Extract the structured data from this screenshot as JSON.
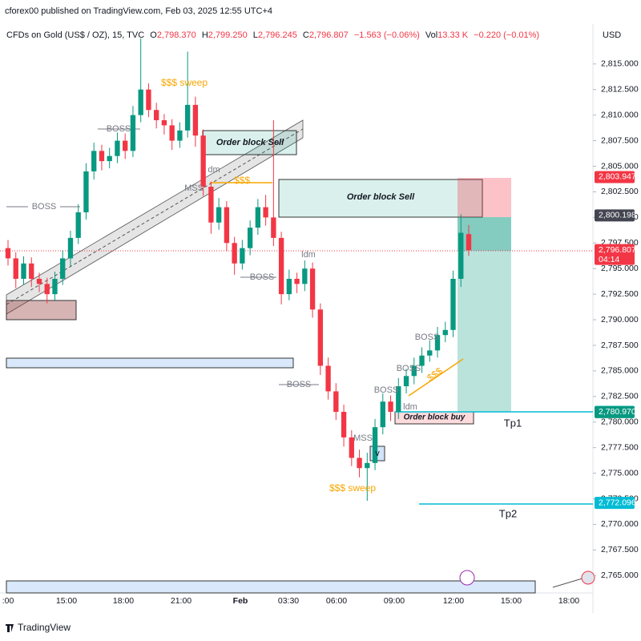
{
  "header": {
    "publisher": "cforex00 published on TradingView.com, Feb 03, 2025 12:55 UTC+4"
  },
  "legend": {
    "symbol": "CFDs on Gold (US$ / OZ), 15, TVC",
    "o_label": "O",
    "open": {
      "value": 2798.37,
      "label": "2,798.370"
    },
    "h_label": "H",
    "high": {
      "value": 2799.25,
      "label": "2,799.250"
    },
    "l_label": "L",
    "low": {
      "value": 2796.245,
      "label": "2,796.245"
    },
    "c_label": "C",
    "close": {
      "value": 2796.807,
      "label": "2,796.807"
    },
    "change": "−1.563 (−0.06%)",
    "vol_label": "Vol",
    "volume": "13.33 K",
    "vol_change": "−0.220 (−0.01%)",
    "currency": "USD"
  },
  "chart_data": {
    "type": "candlestick",
    "up_color": "#089981",
    "down_color": "#f23645",
    "xticks": [
      ":00",
      "15:00",
      "18:00",
      "21:00",
      "Feb",
      "03:30",
      "06:00",
      "09:00",
      "12:00",
      "15:00",
      "18:00"
    ],
    "ylim": [
      2763.3,
      2818.9
    ],
    "yticks": [
      {
        "value": 2765,
        "label": "2,765.000"
      },
      {
        "value": 2767.5,
        "label": "2,767.500"
      },
      {
        "value": 2770,
        "label": "2,770.000"
      },
      {
        "value": 2772.5,
        "label": "2,772.500"
      },
      {
        "value": 2775,
        "label": "2,775.000"
      },
      {
        "value": 2777.5,
        "label": "2,777.500"
      },
      {
        "value": 2780,
        "label": "2,780.000"
      },
      {
        "value": 2782.5,
        "label": "2,782.500"
      },
      {
        "value": 2785,
        "label": "2,785.000"
      },
      {
        "value": 2787.5,
        "label": "2,787.500"
      },
      {
        "value": 2790,
        "label": "2,790.000"
      },
      {
        "value": 2792.5,
        "label": "2,792.500"
      },
      {
        "value": 2795,
        "label": "2,795.000"
      },
      {
        "value": 2797.5,
        "label": "2,797.500"
      },
      {
        "value": 2800,
        "label": "2,800.000"
      },
      {
        "value": 2802.5,
        "label": "2,802.500"
      },
      {
        "value": 2805,
        "label": "2,805.000"
      },
      {
        "value": 2807.5,
        "label": "2,807.500"
      },
      {
        "value": 2810,
        "label": "2,810.000"
      },
      {
        "value": 2812.5,
        "label": "2,812.500"
      },
      {
        "value": 2815,
        "label": "2,815.000"
      }
    ],
    "open": [
      2797,
      2796,
      2794,
      2795.5,
      2794,
      2793.5,
      2792.5,
      2794,
      2796,
      2798,
      2800.5,
      2804.5,
      2806.5,
      2805.5,
      2806,
      2807.5,
      2806.5,
      2810,
      2812.5,
      2810.5,
      2809.5,
      2809,
      2807.5,
      2808.5,
      2811,
      2808,
      2803,
      2799.5,
      2801,
      2797.5,
      2795.5,
      2797,
      2799,
      2801,
      2800,
      2798,
      2792.5,
      2794,
      2793.5,
      2795,
      2791,
      2785.5,
      2783,
      2781,
      2778.5,
      2776.5,
      2775.5,
      2776,
      2779.5,
      2782,
      2781,
      2783.5,
      2784.5,
      2785.5,
      2786.5,
      2787,
      2788.5,
      2789,
      2794,
      2798.37
    ],
    "high": [
      2797.8,
      2796.6,
      2796.2,
      2796.1,
      2794.6,
      2794.1,
      2794.7,
      2796.8,
      2798.7,
      2801.3,
      2805.3,
      2807.3,
      2807.1,
      2806.8,
      2808.3,
      2808.2,
      2810.9,
      2817.5,
      2813.1,
      2811.2,
      2810.1,
      2809.6,
      2809.3,
      2816.2,
      2811.8,
      2808.6,
      2803.5,
      2801.9,
      2801.6,
      2798.1,
      2797.8,
      2799.7,
      2801.8,
      2802.2,
      2809.5,
      2798.6,
      2794.9,
      2794.6,
      2795.8,
      2795.6,
      2791.6,
      2786.3,
      2783.8,
      2781.7,
      2779.2,
      2777.3,
      2777,
      2780.3,
      2782.8,
      2782.6,
      2784.3,
      2785.2,
      2786.3,
      2787.3,
      2788,
      2789.3,
      2789.8,
      2794.8,
      2800.3,
      2799.25
    ],
    "low": [
      2795.3,
      2793.1,
      2793.4,
      2793.2,
      2792.7,
      2791.6,
      2791.9,
      2793.4,
      2795.2,
      2797.4,
      2799.8,
      2803.7,
      2804.6,
      2804.8,
      2805.3,
      2805.7,
      2805.9,
      2809.3,
      2809.8,
      2808.7,
      2808.1,
      2806.6,
      2806.8,
      2807.8,
      2806.9,
      2802.1,
      2798.4,
      2798.8,
      2796.7,
      2794.4,
      2794.9,
      2796.3,
      2798.3,
      2799.2,
      2797.2,
      2791.5,
      2791.9,
      2792.6,
      2792.8,
      2790.2,
      2784.6,
      2782.2,
      2780.2,
      2777.6,
      2775.7,
      2774.6,
      2772.3,
      2775.3,
      2778.8,
      2780.1,
      2780.3,
      2782.8,
      2783.7,
      2784.8,
      2785.9,
      2786.3,
      2787.8,
      2788.3,
      2793.2,
      2796.245
    ],
    "close": [
      2796,
      2794,
      2795.5,
      2794,
      2793.5,
      2792.5,
      2794,
      2796,
      2798,
      2800.5,
      2804.5,
      2806.5,
      2805.5,
      2806,
      2807.5,
      2806.5,
      2810,
      2812.5,
      2810.5,
      2809.5,
      2809,
      2807.5,
      2808.5,
      2811,
      2808,
      2803,
      2799.5,
      2801,
      2797.5,
      2795.5,
      2797,
      2799,
      2801,
      2800,
      2798,
      2792.5,
      2794,
      2793.5,
      2795,
      2791,
      2785.5,
      2783,
      2781,
      2778.5,
      2776.5,
      2775.5,
      2776,
      2779.5,
      2782,
      2781,
      2783.5,
      2784.5,
      2785.5,
      2786.5,
      2787,
      2788.5,
      2789,
      2794,
      2798.5,
      2796.807
    ],
    "price_badges": [
      {
        "value": 2803.947,
        "label": "2,803.947",
        "color": "#f23645"
      },
      {
        "value": 2800.198,
        "label": "2,800.198",
        "color": "#434651"
      },
      {
        "value": 2796.807,
        "label": "2,796.807",
        "color": "#f23645",
        "countdown": "04:14"
      },
      {
        "value": 2781.001,
        "label": "2,781.001",
        "color": "#00bcd4"
      },
      {
        "value": 2780.97,
        "label": "2,780.970",
        "color": "#089981"
      },
      {
        "value": 2772.096,
        "label": "2,772.096",
        "color": "#00bcd4"
      }
    ]
  },
  "annotations": {
    "boss": "BOSS",
    "mss": "MSS",
    "idm": "ldm",
    "dm": "dm",
    "sweep": "$$$ sweep",
    "liquidity": "$$$",
    "order_block_sell": "Order block Sell",
    "order_block_buy": "Order block buy",
    "marker": "v",
    "tp1": "Tp1",
    "tp2": "Tp2"
  },
  "footer": {
    "brand": "TradingView"
  }
}
